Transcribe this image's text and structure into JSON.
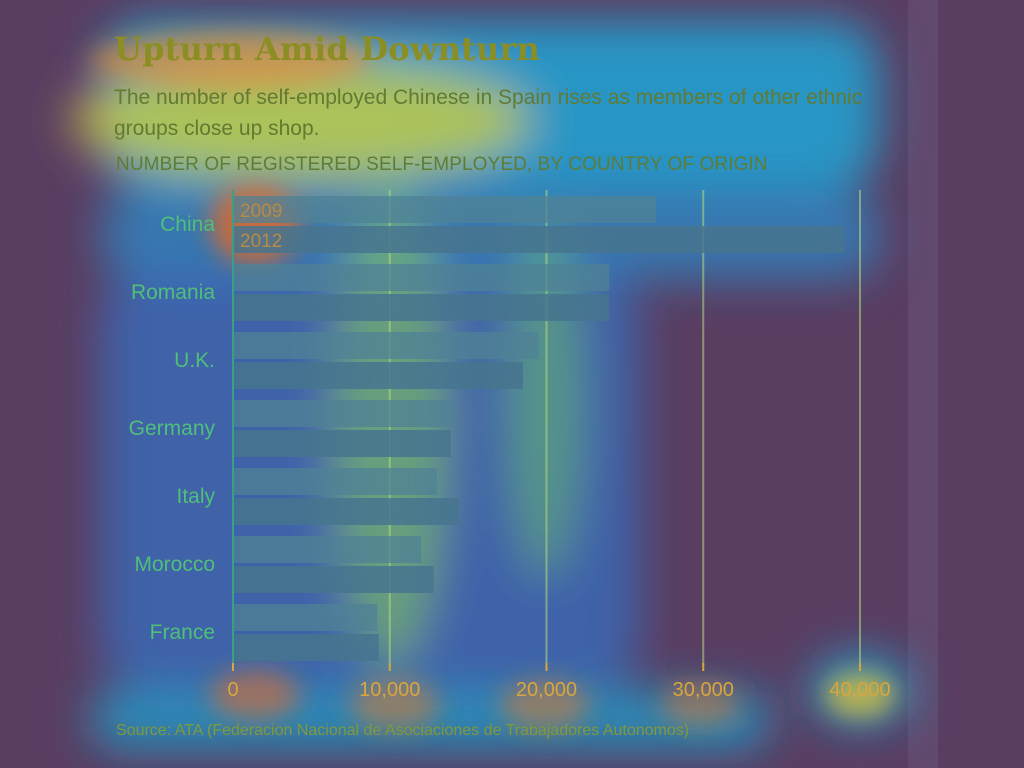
{
  "header": {
    "title": "Upturn Amid Downturn",
    "subtitle": "The number of self-employed Chinese in Spain rises as members of other ethnic groups close up shop.",
    "axis_caption": "NUMBER OF REGISTERED SELF-EMPLOYED, BY COUNTRY OF ORIGIN"
  },
  "footer": {
    "source": "Source: ATA (Federacion Nacional de Asociaciones de Trabajadores Autonomos)"
  },
  "colors": {
    "background": "#5a3e62",
    "bar_2009": "#4f8296",
    "bar_2012": "#46748e",
    "axis": "#39a088",
    "gridline": "#b7dd7a",
    "category_label": "#4fbf7a",
    "tick_label": "#d8a640",
    "year_label": "#b68a4a"
  },
  "chart_data": {
    "type": "bar",
    "orientation": "horizontal",
    "categories": [
      "China",
      "Romania",
      "U.K.",
      "Germany",
      "Italy",
      "Morocco",
      "France"
    ],
    "series": [
      {
        "name": "2009",
        "values": [
          27000,
          24000,
          19500,
          14000,
          13000,
          12000,
          9200
        ]
      },
      {
        "name": "2012",
        "values": [
          39000,
          24000,
          18500,
          13900,
          14400,
          12800,
          9300
        ]
      }
    ],
    "legend_labels": [
      "2009",
      "2012"
    ],
    "xlim": [
      0,
      40000
    ],
    "xticks": [
      0,
      10000,
      20000,
      30000,
      40000
    ],
    "xtick_labels": [
      "0",
      "10,000",
      "20,000",
      "30,000",
      "40,000"
    ],
    "grid": true
  }
}
